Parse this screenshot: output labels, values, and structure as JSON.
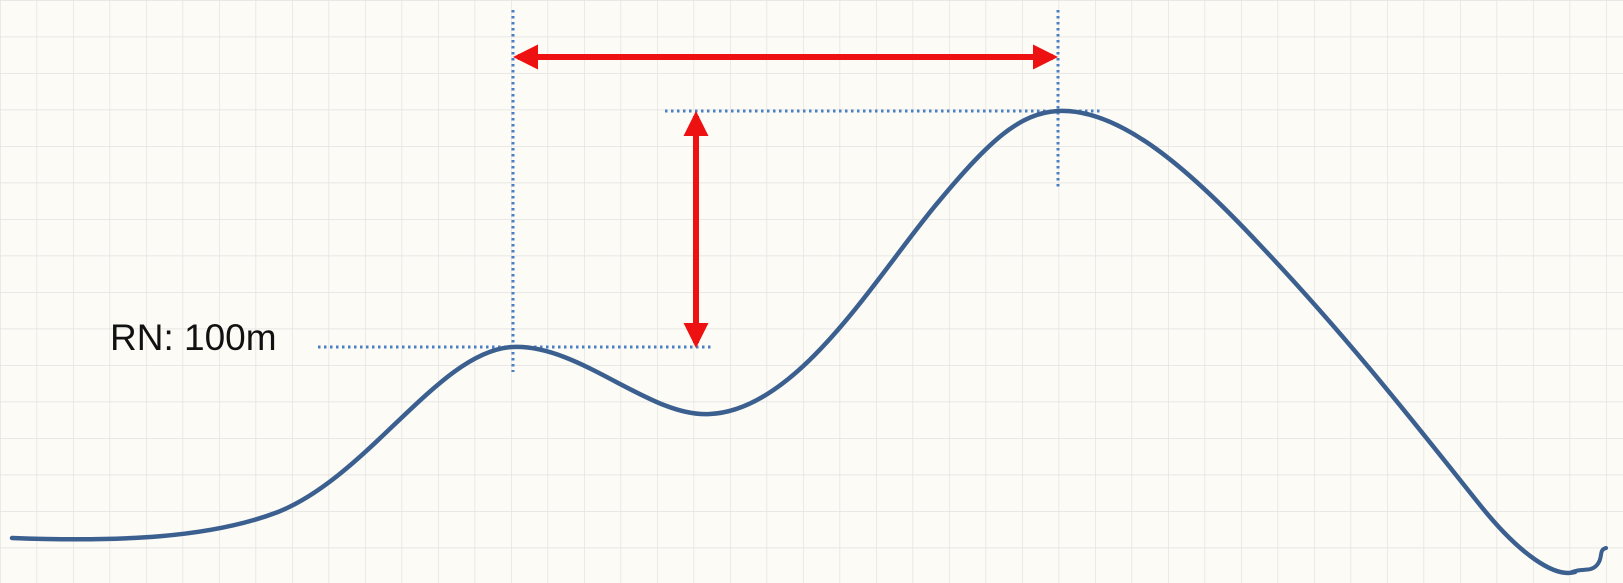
{
  "diagram": {
    "reference_label": "RN: 100m"
  },
  "colors": {
    "background": "#fcfbf6",
    "grid": "#e2e2e0",
    "terrain_profile": "#3b5f8f",
    "guide_lines": "#4a7fc4",
    "measure_arrows": "#ee1111",
    "text": "#111111"
  },
  "icons": [
    "horizontal-double-arrow-icon",
    "vertical-double-arrow-icon",
    "squiggle-mark-icon"
  ]
}
